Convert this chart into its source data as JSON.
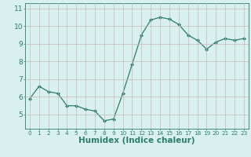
{
  "x": [
    0,
    1,
    2,
    3,
    4,
    5,
    6,
    7,
    8,
    9,
    10,
    11,
    12,
    13,
    14,
    15,
    16,
    17,
    18,
    19,
    20,
    21,
    22,
    23
  ],
  "y": [
    5.9,
    6.6,
    6.3,
    6.2,
    5.5,
    5.5,
    5.3,
    5.2,
    4.65,
    4.75,
    6.2,
    7.85,
    9.5,
    10.35,
    10.5,
    10.4,
    10.1,
    9.5,
    9.2,
    8.7,
    9.1,
    9.3,
    9.2,
    9.3
  ],
  "title": "",
  "xlabel": "Humidex (Indice chaleur)",
  "ylabel": "",
  "xlim": [
    -0.5,
    23.5
  ],
  "ylim": [
    4.2,
    11.3
  ],
  "yticks": [
    5,
    6,
    7,
    8,
    9,
    10,
    11
  ],
  "xticks": [
    0,
    1,
    2,
    3,
    4,
    5,
    6,
    7,
    8,
    9,
    10,
    11,
    12,
    13,
    14,
    15,
    16,
    17,
    18,
    19,
    20,
    21,
    22,
    23
  ],
  "line_color": "#2d7d6e",
  "marker": "D",
  "marker_size": 2.0,
  "bg_color": "#d8f0ee",
  "grid_color": "#c8b8b8",
  "axis_color": "#2d7d6e",
  "tick_color": "#2d7d6e",
  "xlabel_color": "#2d7d6e",
  "xlabel_fontsize": 7.5,
  "tick_fontsize": 6.5,
  "xtick_fontsize": 5.2
}
